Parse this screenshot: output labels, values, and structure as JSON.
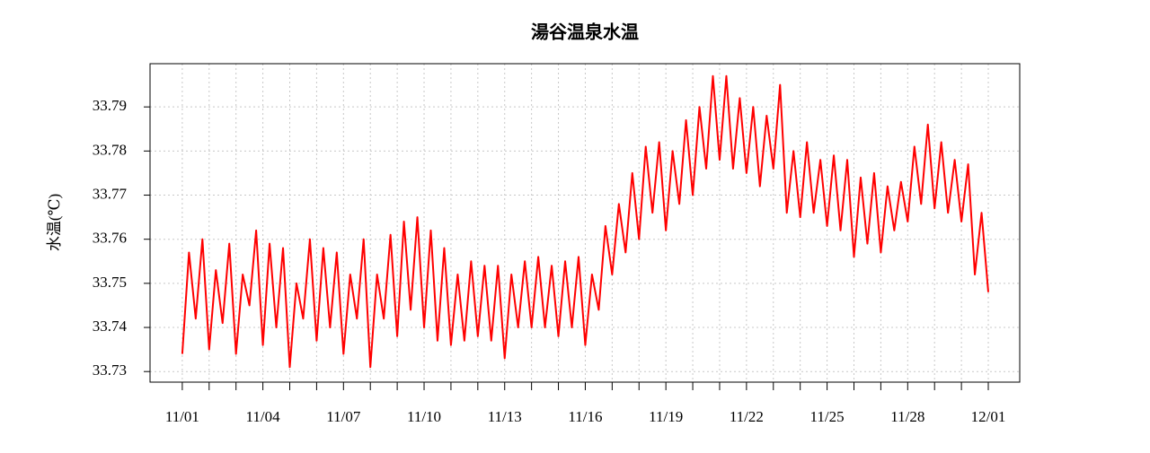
{
  "chart_data": {
    "type": "line",
    "title": "湯谷温泉水温",
    "y_label": "水温(℃)",
    "x": [
      0,
      0.25,
      0.5,
      0.75,
      1,
      1.25,
      1.5,
      1.75,
      2,
      2.25,
      2.5,
      2.75,
      3,
      3.25,
      3.5,
      3.75,
      4,
      4.25,
      4.5,
      4.75,
      5,
      5.25,
      5.5,
      5.75,
      6,
      6.25,
      6.5,
      6.75,
      7,
      7.25,
      7.5,
      7.75,
      8,
      8.25,
      8.5,
      8.75,
      9,
      9.25,
      9.5,
      9.75,
      10,
      10.25,
      10.5,
      10.75,
      11,
      11.25,
      11.5,
      11.75,
      12,
      12.25,
      12.5,
      12.75,
      13,
      13.25,
      13.5,
      13.75,
      14,
      14.25,
      14.5,
      14.75,
      15,
      15.25,
      15.5,
      15.75,
      16,
      16.25,
      16.5,
      16.75,
      17,
      17.25,
      17.5,
      17.75,
      18,
      18.25,
      18.5,
      18.75,
      19,
      19.25,
      19.5,
      19.75,
      20,
      20.25,
      20.5,
      20.75,
      21,
      21.25,
      21.5,
      21.75,
      22,
      22.25,
      22.5,
      22.75,
      23,
      23.25,
      23.5,
      23.75,
      24,
      24.25,
      24.5,
      24.75,
      25,
      25.25,
      25.5,
      25.75,
      26,
      26.25,
      26.5,
      26.75,
      27,
      27.25,
      27.5,
      27.75,
      28,
      28.25,
      28.5,
      28.75,
      29,
      29.25,
      29.5,
      29.75,
      30
    ],
    "series": [
      {
        "color": "#ff0000",
        "values": [
          33.734,
          33.757,
          33.742,
          33.76,
          33.735,
          33.753,
          33.741,
          33.759,
          33.734,
          33.752,
          33.745,
          33.762,
          33.736,
          33.759,
          33.74,
          33.758,
          33.731,
          33.75,
          33.742,
          33.76,
          33.737,
          33.758,
          33.74,
          33.757,
          33.734,
          33.752,
          33.742,
          33.76,
          33.731,
          33.752,
          33.742,
          33.761,
          33.738,
          33.764,
          33.744,
          33.765,
          33.74,
          33.762,
          33.737,
          33.758,
          33.736,
          33.752,
          33.737,
          33.755,
          33.738,
          33.754,
          33.737,
          33.754,
          33.733,
          33.752,
          33.74,
          33.755,
          33.74,
          33.756,
          33.74,
          33.754,
          33.738,
          33.755,
          33.74,
          33.756,
          33.736,
          33.752,
          33.744,
          33.763,
          33.752,
          33.768,
          33.757,
          33.775,
          33.76,
          33.781,
          33.766,
          33.782,
          33.762,
          33.78,
          33.768,
          33.787,
          33.77,
          33.79,
          33.776,
          33.797,
          33.778,
          33.797,
          33.776,
          33.792,
          33.775,
          33.79,
          33.772,
          33.788,
          33.776,
          33.795,
          33.766,
          33.78,
          33.765,
          33.782,
          33.766,
          33.778,
          33.763,
          33.779,
          33.762,
          33.778,
          33.756,
          33.774,
          33.759,
          33.775,
          33.757,
          33.772,
          33.762,
          33.773,
          33.764,
          33.781,
          33.768,
          33.786,
          33.767,
          33.782,
          33.766,
          33.778,
          33.764,
          33.777,
          33.752,
          33.766,
          33.748
        ]
      }
    ],
    "xlim": [
      -1.2,
      31.17
    ],
    "xticks": [
      {
        "value": 0,
        "label": "11/01"
      },
      {
        "value": 3,
        "label": "11/04"
      },
      {
        "value": 6,
        "label": "11/07"
      },
      {
        "value": 9,
        "label": "11/10"
      },
      {
        "value": 12,
        "label": "11/13"
      },
      {
        "value": 15,
        "label": "11/16"
      },
      {
        "value": 18,
        "label": "11/19"
      },
      {
        "value": 21,
        "label": "11/22"
      },
      {
        "value": 24,
        "label": "11/25"
      },
      {
        "value": 27,
        "label": "11/28"
      },
      {
        "value": 30,
        "label": "12/01"
      }
    ],
    "xminor_ticks": [
      1,
      2,
      4,
      5,
      7,
      8,
      10,
      11,
      13,
      14,
      16,
      17,
      19,
      20,
      22,
      23,
      25,
      26,
      28,
      29
    ],
    "ylim": [
      33.7276,
      33.7998
    ],
    "yticks": [
      33.73,
      33.74,
      33.75,
      33.76,
      33.77,
      33.78,
      33.79
    ],
    "grid": true
  }
}
